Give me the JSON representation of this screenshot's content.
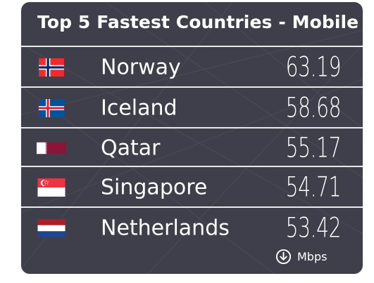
{
  "title": "Top 5 Fastest Countries - Mobile",
  "unit": {
    "label": "Mbps",
    "icon": "download-arrow-icon"
  },
  "colors": {
    "card_background": "#3f3f4c",
    "divider": "#e9e9ec",
    "text": "#ffffff"
  },
  "rows": [
    {
      "country": "Norway",
      "speed": "63.19",
      "flag": "norway-flag"
    },
    {
      "country": "Iceland",
      "speed": "58.68",
      "flag": "iceland-flag"
    },
    {
      "country": "Qatar",
      "speed": "55.17",
      "flag": "qatar-flag"
    },
    {
      "country": "Singapore",
      "speed": "54.71",
      "flag": "singapore-flag"
    },
    {
      "country": "Netherlands",
      "speed": "53.42",
      "flag": "netherlands-flag"
    }
  ]
}
